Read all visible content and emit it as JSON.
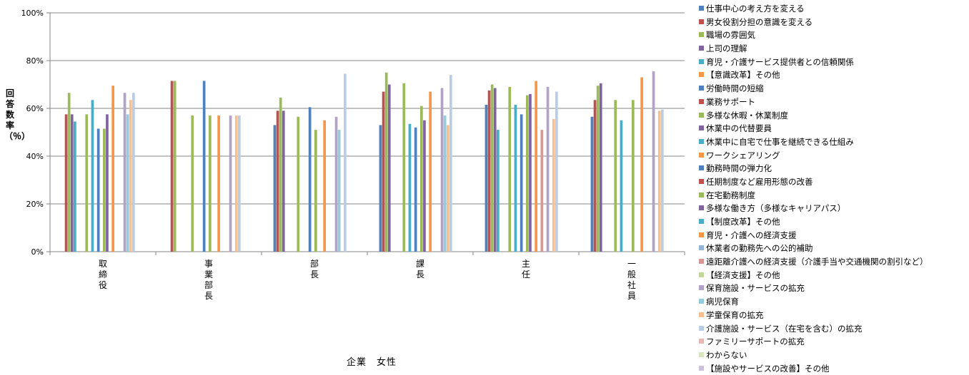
{
  "chart_data": {
    "type": "bar",
    "title": "",
    "xlabel": "企業　女性",
    "ylabel": "回答数率（％）",
    "ylim": [
      0,
      100
    ],
    "yticks": [
      "0%",
      "20%",
      "40%",
      "60%",
      "80%",
      "100%"
    ],
    "grid": true,
    "legend_position": "right",
    "categories": [
      "取締役",
      "事業部長",
      "部長",
      "課長",
      "主任",
      "一般社員"
    ],
    "series": [
      {
        "name": "仕事中心の考え方を変える",
        "color": "#4f81bd",
        "values": [
          0,
          0,
          53,
          53,
          61.5,
          56.5
        ]
      },
      {
        "name": "男女役割分担の意識を変える",
        "color": "#c0504d",
        "values": [
          57.5,
          71.5,
          59,
          67,
          67.5,
          63.5
        ]
      },
      {
        "name": "職場の雰囲気",
        "color": "#9bbb59",
        "values": [
          66.5,
          71.5,
          64.5,
          75,
          70,
          69.5
        ]
      },
      {
        "name": "上司の理解",
        "color": "#8064a2",
        "values": [
          57.5,
          0,
          59,
          70,
          68.5,
          70.5
        ]
      },
      {
        "name": "育児・介護サービス提供者との信頼関係",
        "color": "#4bacc6",
        "values": [
          54.5,
          0,
          0,
          0,
          51,
          0
        ]
      },
      {
        "name": "【意識改革】その他",
        "color": "#f79646",
        "values": [
          0,
          0,
          0,
          0,
          0,
          0
        ]
      },
      {
        "name": "労働時間の短縮",
        "color": "#4f81bd",
        "values": [
          0,
          0,
          0,
          0,
          0,
          0
        ]
      },
      {
        "name": "業務サポート",
        "color": "#c0504d",
        "values": [
          0,
          0,
          0,
          0,
          0,
          0
        ]
      },
      {
        "name": "多様な休暇・休業制度",
        "color": "#9bbb59",
        "values": [
          57.5,
          57,
          56.5,
          70.5,
          69,
          63.5
        ]
      },
      {
        "name": "休業中の代替要員",
        "color": "#8064a2",
        "values": [
          0,
          0,
          0,
          0,
          0,
          0
        ]
      },
      {
        "name": "休業中に自宅で仕事を継続できる仕組み",
        "color": "#4bacc6",
        "values": [
          63.5,
          0,
          0,
          53.5,
          61.5,
          55
        ]
      },
      {
        "name": "ワークシェアリング",
        "color": "#f79646",
        "values": [
          0,
          0,
          0,
          0,
          0,
          0
        ]
      },
      {
        "name": "勤務時間の弾力化",
        "color": "#4f81bd",
        "values": [
          51.5,
          71.5,
          60.5,
          52,
          57.5,
          0
        ]
      },
      {
        "name": "任期制度など雇用形態の改善",
        "color": "#c0504d",
        "values": [
          0,
          0,
          0,
          0,
          0,
          0
        ]
      },
      {
        "name": "在宅勤務制度",
        "color": "#9bbb59",
        "values": [
          51.5,
          57,
          51,
          61,
          65.5,
          63.5
        ]
      },
      {
        "name": "多様な働き方（多様なキャリアパス）",
        "color": "#8064a2",
        "values": [
          57.5,
          0,
          0,
          55,
          66,
          0
        ]
      },
      {
        "name": "【制度改革】その他",
        "color": "#4bacc6",
        "values": [
          0,
          0,
          0,
          0,
          0,
          0
        ]
      },
      {
        "name": "育児・介護への経済支援",
        "color": "#f79646",
        "values": [
          69.5,
          57,
          55,
          67,
          71.5,
          73
        ]
      },
      {
        "name": "休業者の勤務先への公的補助",
        "color": "#95b3d7",
        "values": [
          0,
          0,
          0,
          0,
          0,
          0
        ]
      },
      {
        "name": "遠距離介護への経済支援（介護手当や交通機関の割引など）",
        "color": "#d99694",
        "values": [
          0,
          0,
          0,
          0,
          51,
          0
        ]
      },
      {
        "name": "【経済支援】その他",
        "color": "#c3d69b",
        "values": [
          0,
          0,
          0,
          0,
          0,
          0
        ]
      },
      {
        "name": "保育施設・サービスの拡充",
        "color": "#b3a2c7",
        "values": [
          66.5,
          57,
          56.5,
          68.5,
          69,
          75.5
        ]
      },
      {
        "name": "病児保育",
        "color": "#93cddd",
        "values": [
          57.5,
          0,
          51,
          57,
          0,
          0
        ]
      },
      {
        "name": "学童保育の拡充",
        "color": "#fabf8f",
        "values": [
          63.5,
          57,
          0,
          53,
          55.5,
          59
        ]
      },
      {
        "name": "介護施設・サービス（在宅を含む）の拡充",
        "color": "#b9cde5",
        "values": [
          66.5,
          57,
          74.5,
          74,
          67,
          59.5
        ]
      },
      {
        "name": "ファミリーサポートの拡充",
        "color": "#e6b9b8",
        "values": [
          0,
          0,
          0,
          0,
          0,
          0
        ]
      },
      {
        "name": "わからない",
        "color": "#d7e4bd",
        "values": [
          0,
          0,
          0,
          0,
          0,
          0
        ]
      },
      {
        "name": "【施設やサービスの改善】その他",
        "color": "#ccc1da",
        "values": [
          0,
          0,
          0,
          0,
          0,
          0
        ]
      }
    ]
  }
}
